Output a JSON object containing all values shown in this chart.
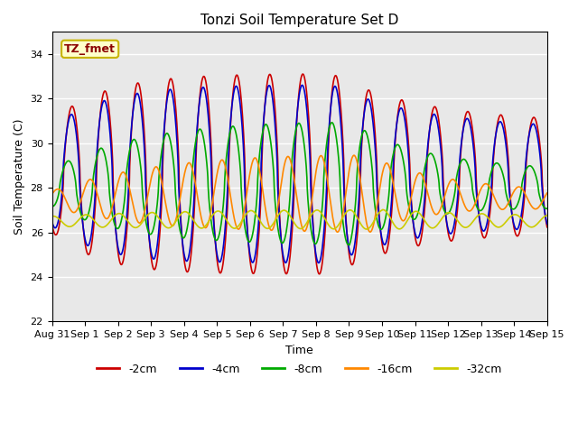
{
  "title": "Tonzi Soil Temperature Set D",
  "xlabel": "Time",
  "ylabel": "Soil Temperature (C)",
  "ylim": [
    22,
    35
  ],
  "yticks": [
    22,
    24,
    26,
    28,
    30,
    32,
    34
  ],
  "bg_color": "#e8e8e8",
  "annotation_text": "TZ_fmet",
  "annotation_color": "#8b0000",
  "annotation_bg": "#ffffcc",
  "annotation_border": "#c8b400",
  "series_colors": [
    "#cc0000",
    "#0000cc",
    "#00aa00",
    "#ff8800",
    "#cccc00"
  ],
  "series_labels": [
    "-2cm",
    "-4cm",
    "-8cm",
    "-16cm",
    "-32cm"
  ],
  "xtick_labels": [
    "Aug 31",
    "Sep 1",
    "Sep 2",
    "Sep 3",
    "Sep 4",
    "Sep 5",
    "Sep 6",
    "Sep 7",
    "Sep 8",
    "Sep 9",
    "Sep 10",
    "Sep 11",
    "Sep 12",
    "Sep 13",
    "Sep 14",
    "Sep 15"
  ]
}
